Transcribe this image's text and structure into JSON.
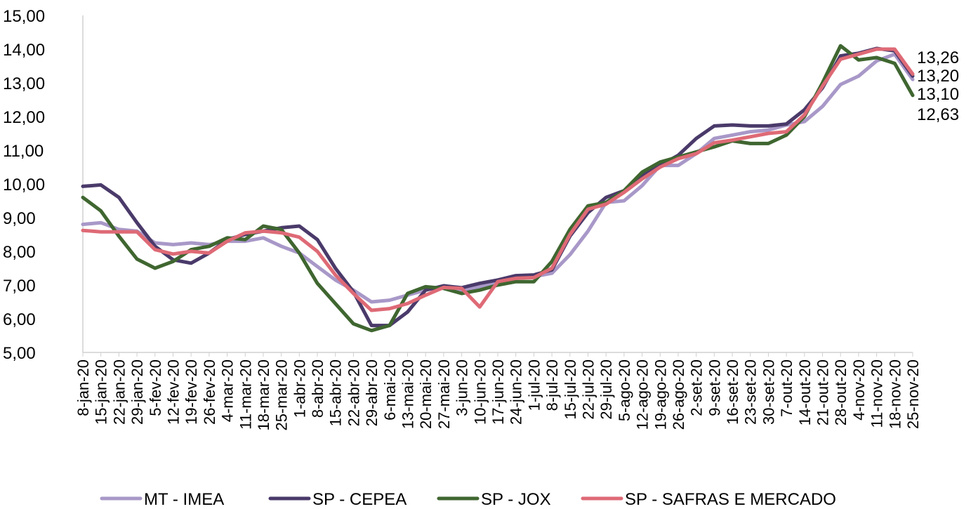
{
  "chart_data": {
    "type": "line",
    "title": "",
    "xlabel": "",
    "ylabel": "",
    "ylim": [
      5,
      15
    ],
    "y_ticks": [
      "5,00",
      "6,00",
      "7,00",
      "8,00",
      "9,00",
      "10,00",
      "11,00",
      "12,00",
      "13,00",
      "14,00",
      "15,00"
    ],
    "grid": false,
    "legend_position": "bottom",
    "categories": [
      "8-jan-20",
      "15-jan-20",
      "22-jan-20",
      "29-jan-20",
      "5-fev-20",
      "12-fev-20",
      "19-fev-20",
      "26-fev-20",
      "4-mar-20",
      "11-mar-20",
      "18-mar-20",
      "25-mar-20",
      "1-abr-20",
      "8-abr-20",
      "15-abr-20",
      "22-abr-20",
      "29-abr-20",
      "6-mai-20",
      "13-mai-20",
      "20-mai-20",
      "27-mai-20",
      "3-jun-20",
      "10-jun-20",
      "17-jun-20",
      "24-jun-20",
      "1-jul-20",
      "8-jul-20",
      "15-jul-20",
      "22-jul-20",
      "29-jul-20",
      "5-ago-20",
      "12-ago-20",
      "19-ago-20",
      "26-ago-20",
      "2-set-20",
      "9-set-20",
      "16-set-20",
      "23-set-20",
      "30-set-20",
      "7-out-20",
      "14-out-20",
      "21-out-20",
      "28-out-20",
      "4-nov-20",
      "11-nov-20",
      "18-nov-20",
      "25-nov-20"
    ],
    "series": [
      {
        "name": "MT - IMEA",
        "color": "#a898c8",
        "values": [
          8.8,
          8.85,
          8.65,
          8.6,
          8.25,
          8.2,
          8.25,
          8.2,
          8.3,
          8.3,
          8.4,
          8.15,
          7.95,
          7.55,
          7.15,
          6.85,
          6.5,
          6.55,
          6.7,
          6.85,
          6.95,
          6.85,
          6.95,
          7.05,
          7.2,
          7.25,
          7.35,
          7.9,
          8.6,
          9.45,
          9.5,
          9.95,
          10.55,
          10.55,
          10.9,
          11.35,
          11.45,
          11.55,
          11.6,
          11.75,
          11.85,
          12.3,
          12.95,
          13.2,
          13.65,
          13.85,
          13.1
        ]
      },
      {
        "name": "SP - CEPEA",
        "color": "#4a3a6a",
        "values": [
          9.93,
          9.97,
          9.6,
          8.85,
          8.15,
          7.75,
          7.65,
          7.95,
          8.35,
          8.5,
          8.6,
          8.7,
          8.75,
          8.35,
          7.5,
          6.8,
          5.8,
          5.8,
          6.2,
          6.85,
          6.98,
          6.92,
          7.05,
          7.15,
          7.28,
          7.3,
          7.45,
          8.45,
          9.15,
          9.6,
          9.8,
          10.25,
          10.55,
          10.85,
          11.35,
          11.72,
          11.75,
          11.72,
          11.72,
          11.78,
          12.2,
          12.85,
          13.8,
          13.88,
          14.02,
          13.95,
          13.2
        ]
      },
      {
        "name": "SP - JOX",
        "color": "#3f6630",
        "values": [
          9.6,
          9.2,
          8.45,
          7.77,
          7.5,
          7.7,
          8.05,
          8.15,
          8.4,
          8.35,
          8.75,
          8.65,
          7.95,
          7.05,
          6.45,
          5.85,
          5.65,
          5.8,
          6.75,
          6.95,
          6.9,
          6.75,
          6.85,
          7.0,
          7.1,
          7.1,
          7.7,
          8.65,
          9.35,
          9.45,
          9.8,
          10.35,
          10.65,
          10.8,
          10.95,
          11.1,
          11.28,
          11.2,
          11.2,
          11.45,
          12.0,
          13.0,
          14.1,
          13.68,
          13.75,
          13.58,
          12.63
        ]
      },
      {
        "name": "SP - SAFRAS E MERCADO",
        "color": "#de6a76",
        "values": [
          8.62,
          8.58,
          8.58,
          8.58,
          8.05,
          7.92,
          8.0,
          7.95,
          8.3,
          8.55,
          8.6,
          8.55,
          8.42,
          8.0,
          7.3,
          6.75,
          6.25,
          6.3,
          6.45,
          6.7,
          6.93,
          6.9,
          6.35,
          7.1,
          7.2,
          7.22,
          7.5,
          8.5,
          9.25,
          9.4,
          9.75,
          10.15,
          10.5,
          10.75,
          10.9,
          11.22,
          11.3,
          11.4,
          11.5,
          11.55,
          12.05,
          12.9,
          13.7,
          13.85,
          14.0,
          14.0,
          13.26
        ]
      }
    ],
    "end_labels": [
      "13,26",
      "13,20",
      "13,10",
      "12,63"
    ]
  }
}
